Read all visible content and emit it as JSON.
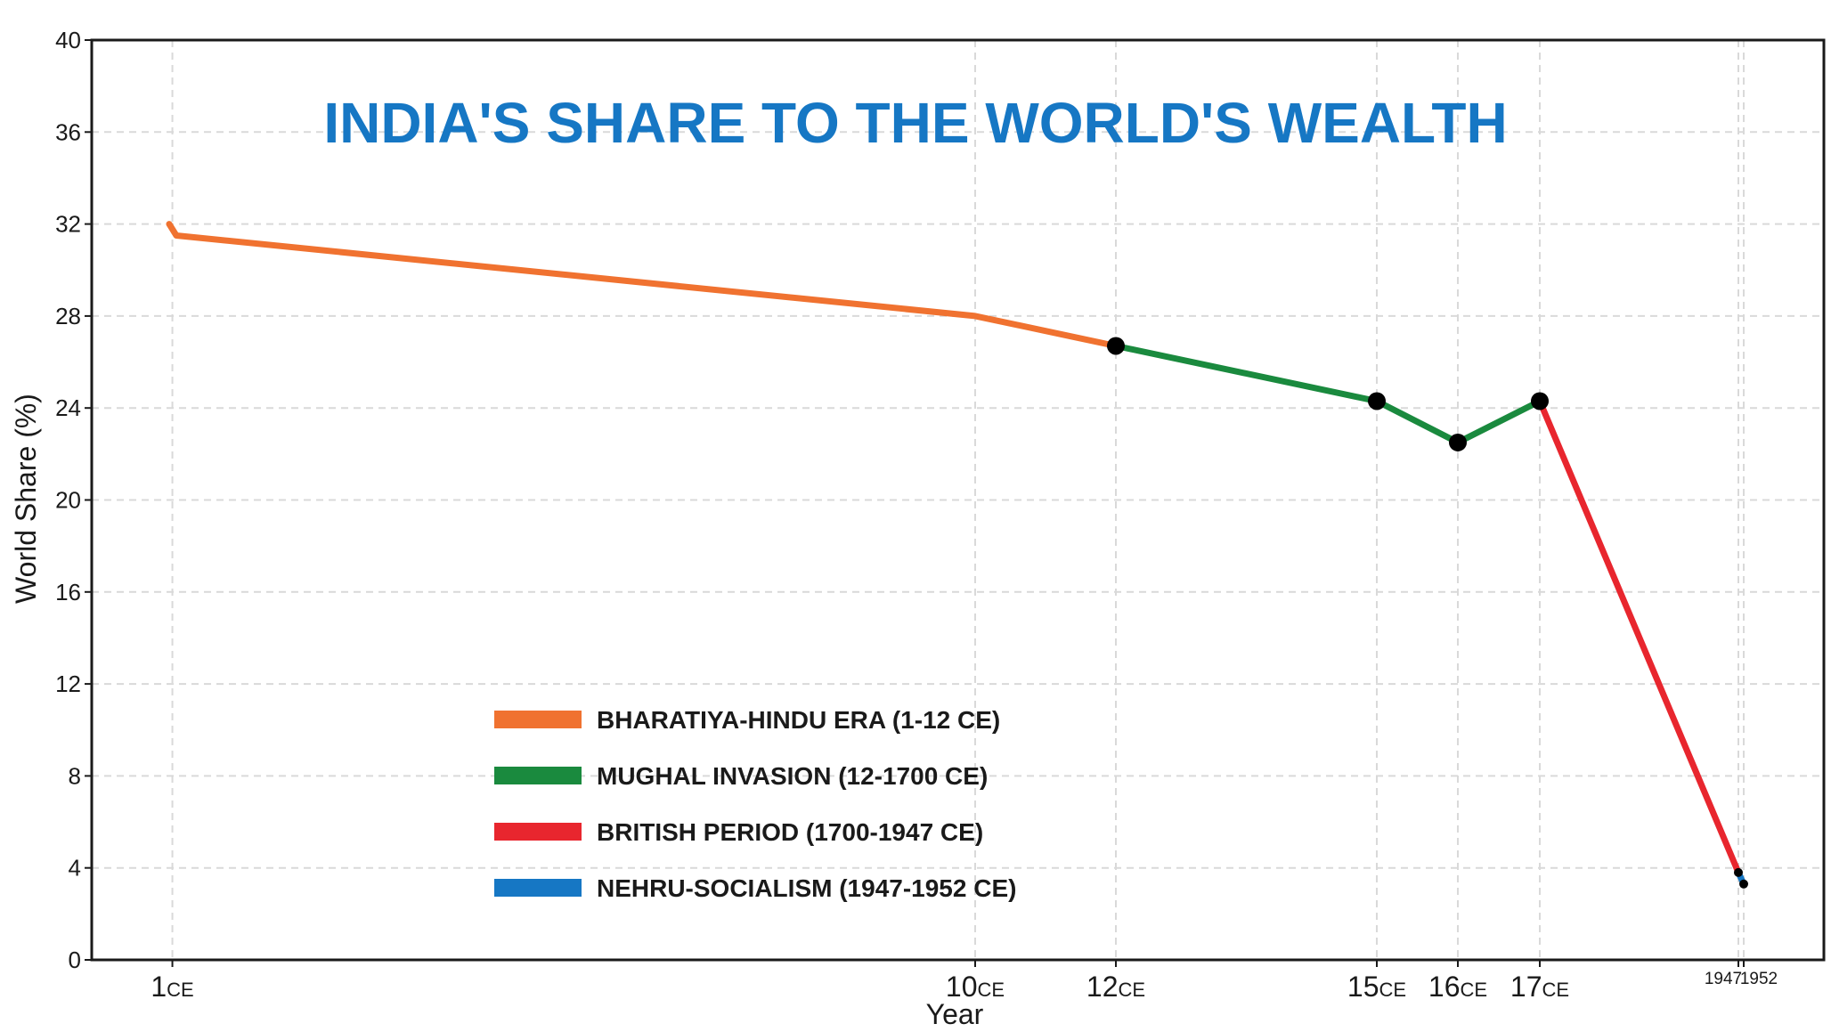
{
  "chart_data": {
    "type": "line",
    "title": "INDIA'S SHARE TO THE WORLD'S WEALTH",
    "xlabel": "Year",
    "ylabel": "World Share (%)",
    "ylim": [
      0,
      40
    ],
    "yticks": [
      0,
      4,
      8,
      12,
      16,
      20,
      24,
      28,
      32,
      36,
      40
    ],
    "grid": true,
    "legend_position": "lower-left",
    "xticks": [
      {
        "value": 1,
        "main": "1",
        "sub": "CE"
      },
      {
        "value": 1000,
        "main": "10",
        "sub": "CE"
      },
      {
        "value": 1175,
        "main": "12",
        "sub": "CE"
      },
      {
        "value": 1500,
        "main": "15",
        "sub": "CE"
      },
      {
        "value": 1600,
        "main": "16",
        "sub": "CE"
      },
      {
        "value": 1700,
        "main": "17",
        "sub": "CE"
      },
      {
        "value": 1947,
        "main": "1947",
        "sub": ""
      },
      {
        "value": 1952,
        "main": "1952",
        "sub": ""
      }
    ],
    "series": [
      {
        "name": "BHARATIYA-HINDU ERA (1-12 CE)",
        "color": "#f07230",
        "x": [
          -3,
          6,
          1000,
          1175
        ],
        "y": [
          32.0,
          31.5,
          28.0,
          26.7
        ]
      },
      {
        "name": "MUGHAL INVASION (12-1700 CE)",
        "color": "#1a8a3e",
        "x": [
          1175,
          1500,
          1600,
          1700
        ],
        "y": [
          26.7,
          24.3,
          22.5,
          24.3
        ]
      },
      {
        "name": "BRITISH PERIOD (1700-1947 CE)",
        "color": "#e8262e",
        "x": [
          1700,
          1947
        ],
        "y": [
          24.3,
          3.8
        ]
      },
      {
        "name": "NEHRU-SOCIALISM (1947-1952 CE)",
        "color": "#1677c4",
        "x": [
          1947,
          1952
        ],
        "y": [
          3.8,
          3.3
        ]
      }
    ],
    "markers": [
      {
        "x": 1175,
        "y": 26.7,
        "size": "large"
      },
      {
        "x": 1500,
        "y": 24.3,
        "size": "large"
      },
      {
        "x": 1600,
        "y": 22.5,
        "size": "large"
      },
      {
        "x": 1700,
        "y": 24.3,
        "size": "large"
      },
      {
        "x": 1947,
        "y": 3.8,
        "size": "small"
      },
      {
        "x": 1952,
        "y": 3.3,
        "size": "small"
      }
    ],
    "colors": {
      "title": "#1677c4",
      "grid": "#d9d9d9",
      "frame": "#1a1a1a",
      "marker": "#000000"
    }
  }
}
